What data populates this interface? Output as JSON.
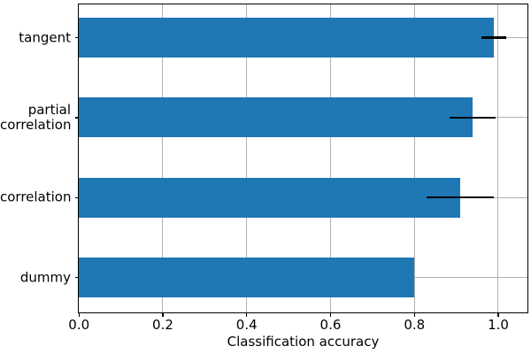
{
  "chart_data": {
    "type": "bar",
    "orientation": "horizontal",
    "title": "",
    "xlabel": "Classification accuracy",
    "ylabel": "",
    "categories_top_to_bottom": [
      "tangent",
      "partial\ncorrelation",
      "correlation",
      "dummy"
    ],
    "values": [
      0.99,
      0.94,
      0.91,
      0.8
    ],
    "error_bars": [
      0.03,
      0.055,
      0.08,
      0
    ],
    "x_ticks": [
      "0.0",
      "0.2",
      "0.4",
      "0.6",
      "0.8",
      "1.0"
    ],
    "x_tick_values": [
      0,
      0.2,
      0.4,
      0.6,
      0.8,
      1.0
    ],
    "xlim": [
      0,
      1.07
    ],
    "grid": "on",
    "legend": "none",
    "colors": {
      "bar": "#1f77b4",
      "error": "#000000",
      "grid": "#b0b0b0",
      "spine": "#000000",
      "text": "#000000"
    }
  }
}
